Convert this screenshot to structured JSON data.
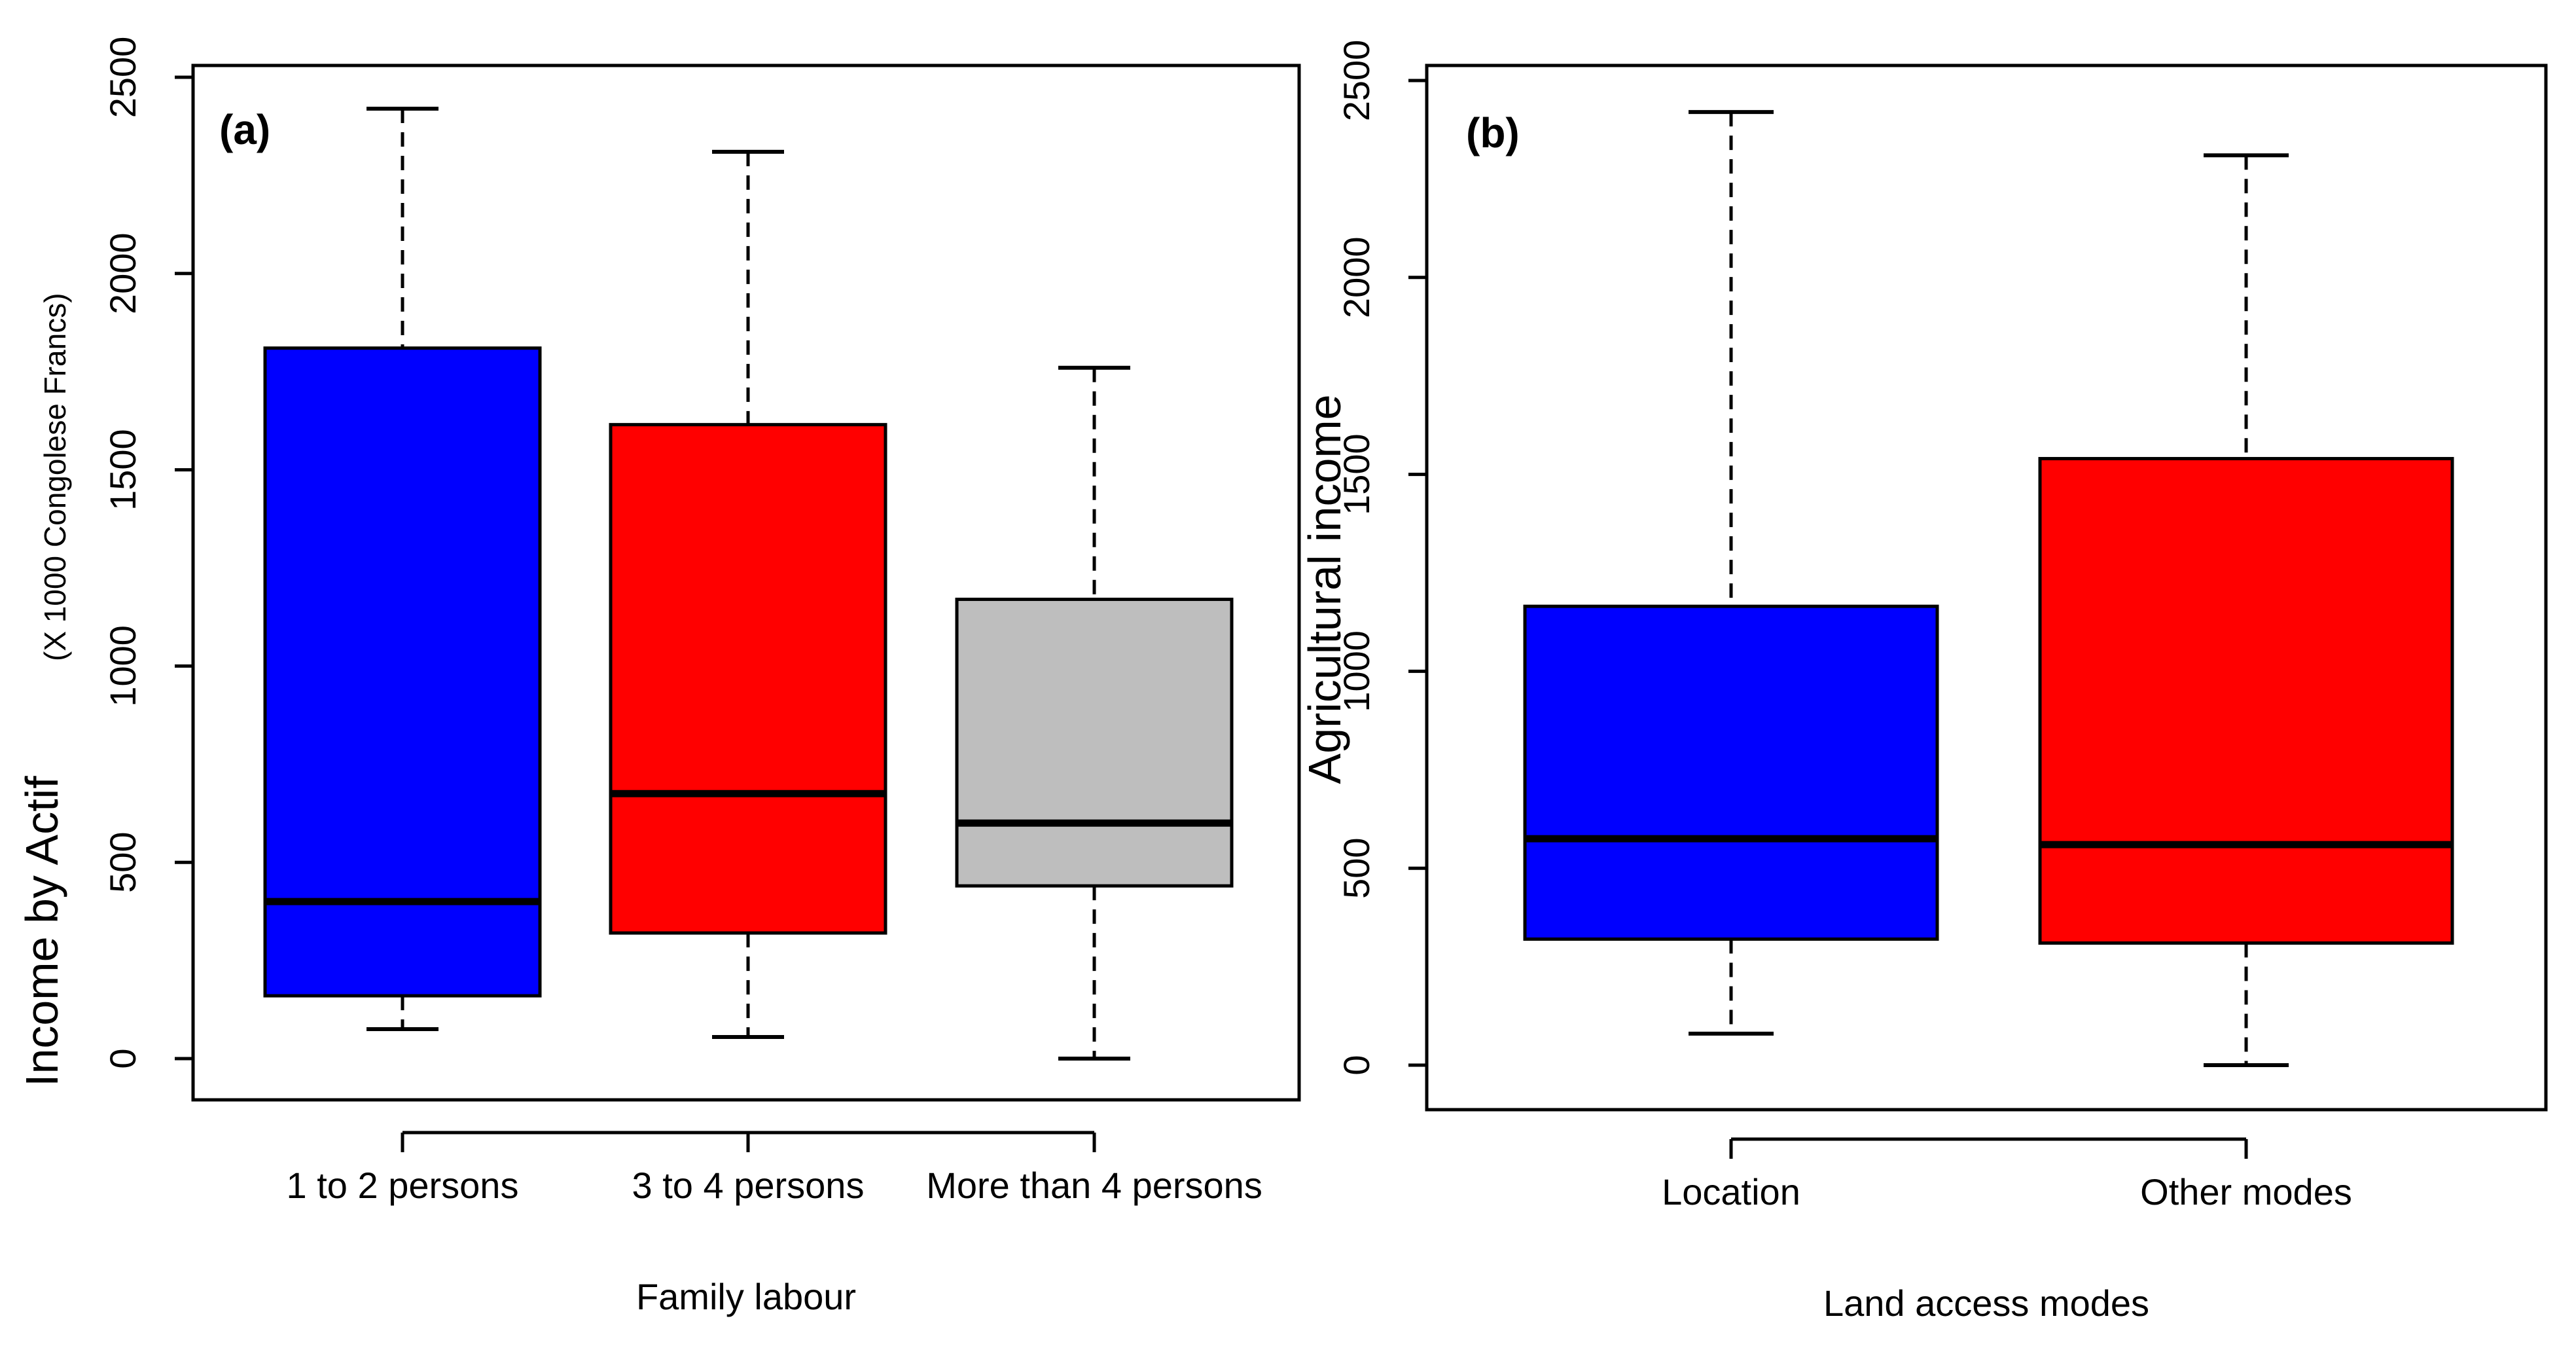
{
  "chart_data": [
    {
      "type": "boxplot",
      "panel_label": "(a)",
      "ylabel": "Income by Actif",
      "ylabel_unit": "(X 1000 Congolese Francs)",
      "xlabel": "Family labour",
      "ylim": [
        0,
        2500
      ],
      "yticks": [
        "0",
        "500",
        "1000",
        "1500",
        "2000",
        "2500"
      ],
      "ytick_values": [
        0,
        500,
        1000,
        1500,
        2000,
        2500
      ],
      "boxes": [
        {
          "category": "1 to 2 persons",
          "color": "#0000ff",
          "min": 75,
          "q1": 160,
          "median": 400,
          "q3": 1810,
          "max": 2420
        },
        {
          "category": "3 to 4 persons",
          "color": "#ff0000",
          "min": 55,
          "q1": 320,
          "median": 675,
          "q3": 1615,
          "max": 2310
        },
        {
          "category": "More than 4 persons",
          "color": "#bebebe",
          "min": 0,
          "q1": 440,
          "median": 600,
          "q3": 1170,
          "max": 1760
        }
      ]
    },
    {
      "type": "boxplot",
      "panel_label": "(b)",
      "ylabel": "Agricultural income",
      "ylabel_unit": "",
      "xlabel": "Land access modes",
      "ylim": [
        0,
        2500
      ],
      "yticks": [
        "0",
        "500",
        "1000",
        "1500",
        "2000",
        "2500"
      ],
      "ytick_values": [
        0,
        500,
        1000,
        1500,
        2000,
        2500
      ],
      "boxes": [
        {
          "category": "Location",
          "color": "#0000ff",
          "min": 80,
          "q1": 320,
          "median": 575,
          "q3": 1165,
          "max": 2420
        },
        {
          "category": "Other modes",
          "color": "#ff0000",
          "min": 0,
          "q1": 310,
          "median": 560,
          "q3": 1540,
          "max": 2310
        }
      ]
    }
  ]
}
